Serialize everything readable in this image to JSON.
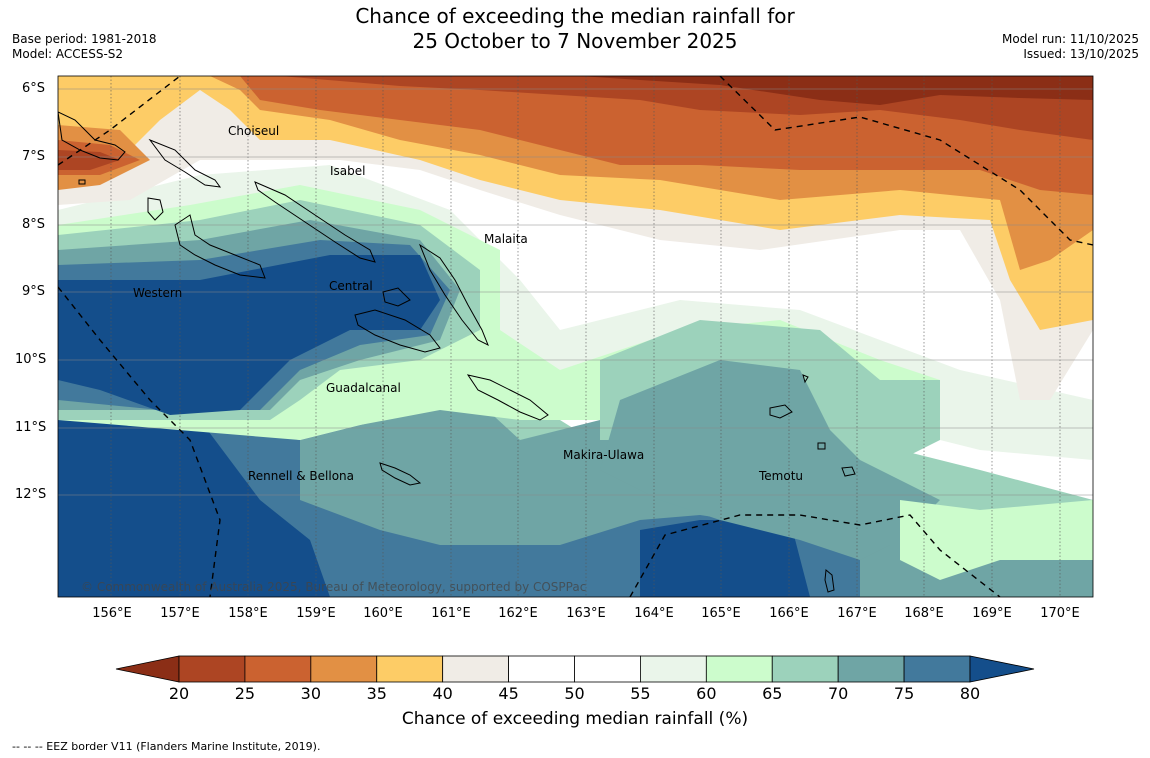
{
  "title_line1": "Chance of exceeding the median rainfall for",
  "title_line2": "25 October to 7 November 2025",
  "base_period": "Base period: 1981-2018",
  "model": "Model: ACCESS-S2",
  "model_run": "Model run: 11/10/2025",
  "issued": "Issued: 13/10/2025",
  "copyright": "© Commonwealth of Australia 2025, Bureau of Meteorology, supported by COSPPac",
  "colorbar_label": "Chance of exceeding median rainfall (%)",
  "eez_note": "--  --  -- EEZ border V11 (Flanders Marine Institute, 2019).",
  "lat_labels": [
    "6°S",
    "7°S",
    "8°S",
    "9°S",
    "10°S",
    "11°S",
    "12°S"
  ],
  "lon_labels": [
    "156°E",
    "157°E",
    "158°E",
    "159°E",
    "160°E",
    "161°E",
    "162°E",
    "163°E",
    "164°E",
    "165°E",
    "166°E",
    "167°E",
    "168°E",
    "169°E",
    "170°E"
  ],
  "colorbar_ticks": [
    "20",
    "25",
    "30",
    "35",
    "40",
    "45",
    "50",
    "55",
    "60",
    "65",
    "70",
    "75",
    "80"
  ],
  "colorbar_colors": [
    "#8b2e16",
    "#ad4523",
    "#cb6230",
    "#e29044",
    "#fdcc66",
    "#f0ece6",
    "#ffffff",
    "#ffffff",
    "#eaf5ea",
    "#ccfccc",
    "#9cd2bb",
    "#6fa5a5",
    "#42799c",
    "#144e8b"
  ],
  "provinces": [
    "Choiseul",
    "Isabel",
    "Malaita",
    "Western",
    "Central",
    "Guadalcanal",
    "Makira-Ulawa",
    "Rennell & Bellona",
    "Temotu"
  ]
}
